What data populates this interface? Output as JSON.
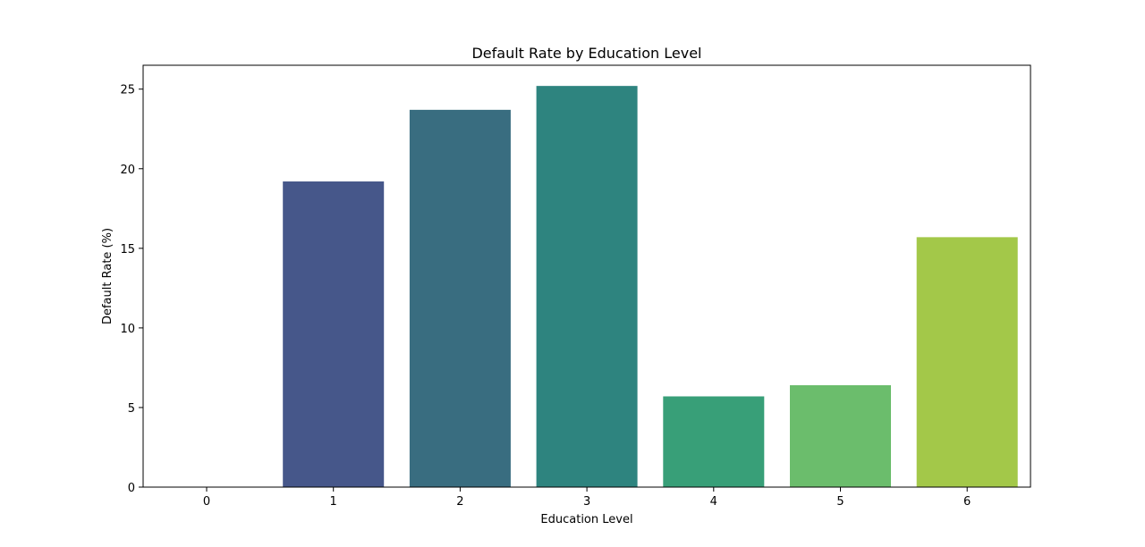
{
  "chart_data": {
    "type": "bar",
    "title": "Default Rate by Education Level",
    "xlabel": "Education Level",
    "ylabel": "Default Rate (%)",
    "categories": [
      "0",
      "1",
      "2",
      "3",
      "4",
      "5",
      "6"
    ],
    "values": [
      0,
      19.2,
      23.7,
      25.2,
      5.7,
      6.4,
      15.7
    ],
    "colors": [
      "#440154",
      "#46578a",
      "#396d80",
      "#2e847f",
      "#389f78",
      "#6bbd6c",
      "#a3c849"
    ],
    "ylim": [
      0,
      26.5
    ],
    "yticks": [
      0,
      5,
      10,
      15,
      20,
      25
    ],
    "grid": false,
    "legend": "none"
  }
}
